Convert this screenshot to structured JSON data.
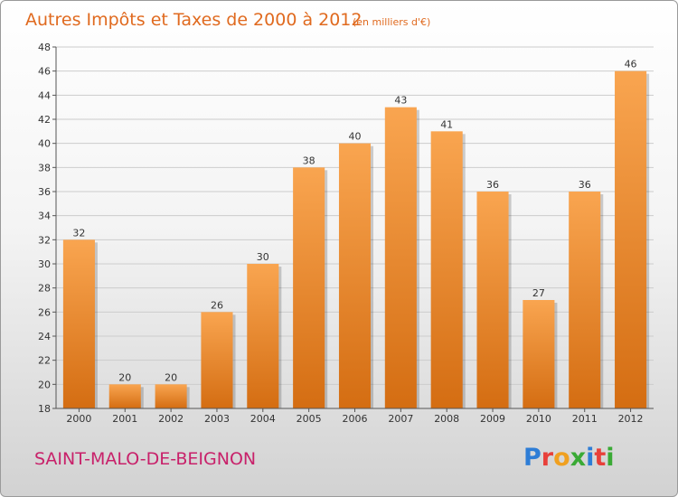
{
  "colors": {
    "bar_light": "#f9a550",
    "bar_dark": "#d46d12",
    "title": "#e06a1f",
    "commune": "#c8216a",
    "grid": "#cccccc",
    "axis": "#555555"
  },
  "commune_name": "SAINT-MALO-DE-BEIGNON",
  "logo": {
    "text": "Proxiti",
    "letter_colors": [
      "#2e7dd6",
      "#e8403a",
      "#f0a020",
      "#3aaa35",
      "#2e7dd6",
      "#e8403a",
      "#3aaa35"
    ]
  },
  "chart_data": {
    "type": "bar",
    "title": "Autres Impôts et Taxes de 2000 à 2012",
    "subtitle": "(en milliers d'€)",
    "categories": [
      "2000",
      "2001",
      "2002",
      "2003",
      "2004",
      "2005",
      "2006",
      "2007",
      "2008",
      "2009",
      "2010",
      "2011",
      "2012"
    ],
    "values": [
      32,
      20,
      20,
      26,
      30,
      38,
      40,
      43,
      41,
      36,
      27,
      36,
      46
    ],
    "ylim": [
      18,
      48
    ],
    "yticks": [
      18,
      20,
      22,
      24,
      26,
      28,
      30,
      32,
      34,
      36,
      38,
      40,
      42,
      44,
      46,
      48
    ],
    "grid": true,
    "xlabel": "",
    "ylabel": ""
  }
}
